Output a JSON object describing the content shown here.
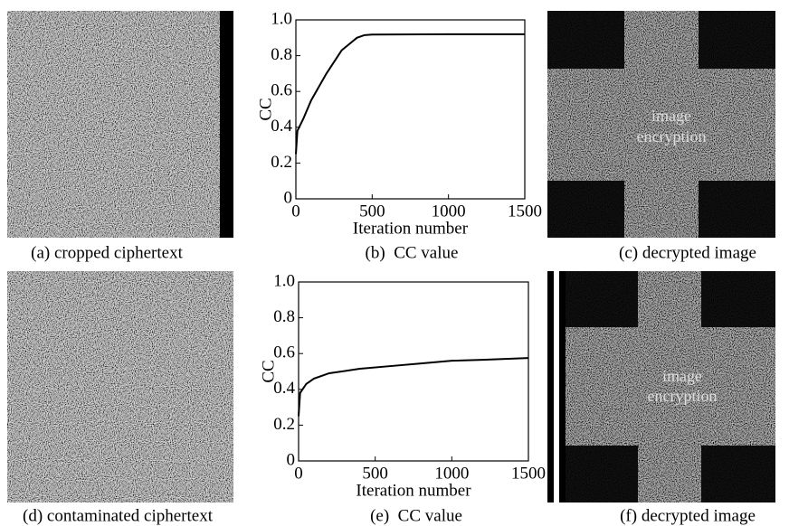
{
  "chart_data": [
    {
      "type": "line",
      "x": [
        0,
        10,
        50,
        100,
        200,
        300,
        400,
        450,
        500,
        1000,
        1500
      ],
      "values": [
        0.25,
        0.38,
        0.45,
        0.55,
        0.7,
        0.83,
        0.9,
        0.915,
        0.918,
        0.92,
        0.92
      ],
      "color": "#000000",
      "xlabel": "Iteration number",
      "ylabel": "CC",
      "xlim": [
        0,
        1500
      ],
      "ylim": [
        0,
        1
      ],
      "xticks": [
        0,
        500,
        1000,
        1500
      ],
      "yticks": [
        0,
        0.2,
        0.4,
        0.6,
        0.8,
        {
          "value": 1,
          "label": "1.0"
        }
      ]
    },
    {
      "type": "line",
      "x": [
        0,
        10,
        50,
        100,
        200,
        400,
        600,
        800,
        1000,
        1200,
        1500
      ],
      "values": [
        0.25,
        0.38,
        0.43,
        0.46,
        0.49,
        0.515,
        0.53,
        0.545,
        0.56,
        0.565,
        0.575
      ],
      "color": "#000000",
      "xlabel": "Iteration number",
      "ylabel": "CC",
      "xlim": [
        0,
        1500
      ],
      "ylim": [
        0,
        1
      ],
      "xticks": [
        0,
        500,
        1000,
        1500
      ],
      "yticks": [
        0,
        0.2,
        0.4,
        0.6,
        0.8,
        {
          "value": 1,
          "label": "1.0"
        }
      ]
    }
  ],
  "panels": [
    {
      "caption": "(a) cropped ciphertext"
    },
    {
      "caption": "(b)  CC value"
    },
    {
      "caption": "(c) decrypted image",
      "text": [
        "image",
        "encryption"
      ]
    },
    {
      "caption": "(d) contaminated ciphertext"
    },
    {
      "caption": "(e)  CC value"
    },
    {
      "caption": "(f) decrypted image",
      "text": [
        "image",
        "encryption"
      ]
    }
  ]
}
